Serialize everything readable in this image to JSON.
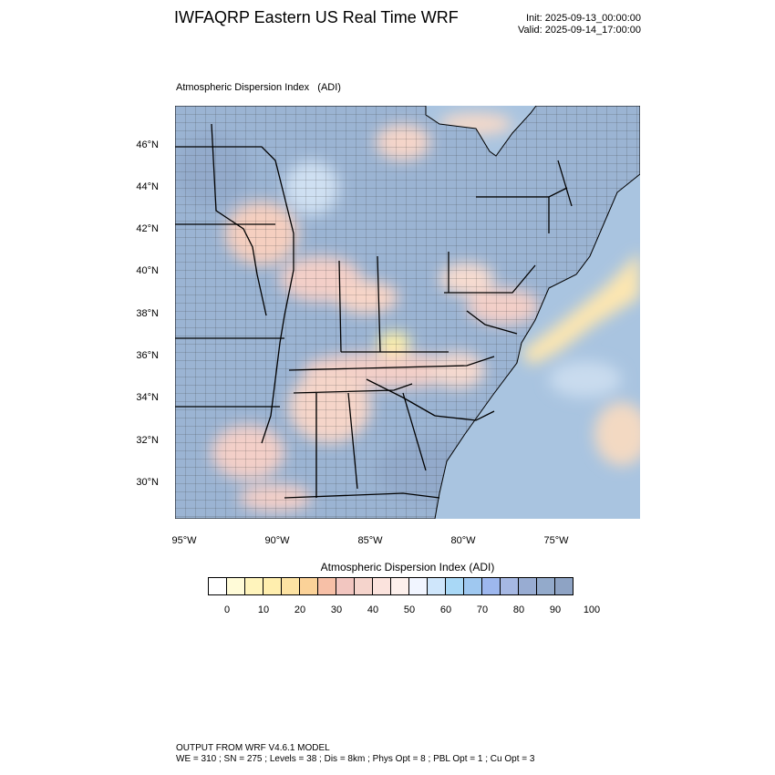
{
  "header": {
    "title": "IWFAQRP Eastern US Real Time WRF",
    "init": "Init: 2025-09-13_00:00:00",
    "valid": "Valid: 2025-09-14_17:00:00"
  },
  "map": {
    "title": "Atmospheric Dispersion Index   (ADI)",
    "lat_labels": [
      "46°N",
      "44°N",
      "42°N",
      "40°N",
      "38°N",
      "36°N",
      "34°N",
      "32°N",
      "30°N"
    ],
    "lon_labels": [
      "95°W",
      "90°W",
      "85°W",
      "80°W",
      "75°W"
    ],
    "colors": {
      "ocean": "#a9c4e0",
      "land_base": "#9bb4d3",
      "high_adi": "#93aacb",
      "moderate_adi": "#f3cfc8",
      "low_adi": "#fde7ad",
      "very_low_adi": "#fff7b2",
      "boundary": "#000000"
    }
  },
  "colorbar": {
    "title": "Atmospheric Dispersion Index  (ADI)",
    "colors": [
      "#ffffff",
      "#fffbd8",
      "#fff4bc",
      "#ffeeae",
      "#fde3a3",
      "#fbd298",
      "#f7c0a7",
      "#f2c6c0",
      "#f5d4cc",
      "#fbe3dd",
      "#fdf0ec",
      "#f1f5ff",
      "#cfe6fb",
      "#a9d8f6",
      "#9fc8f0",
      "#9db7ee",
      "#a6b8e3",
      "#98acd2",
      "#93aacb",
      "#8ea3c4"
    ],
    "tick_labels": [
      "0",
      "10",
      "20",
      "30",
      "40",
      "50",
      "60",
      "70",
      "80",
      "90",
      "100"
    ]
  },
  "footer": {
    "line1": "OUTPUT FROM WRF V4.6.1 MODEL",
    "line2": "WE = 310 ; SN = 275 ; Levels = 38 ; Dis = 8km ; Phys Opt = 8 ; PBL Opt = 1 ; Cu Opt = 3"
  }
}
